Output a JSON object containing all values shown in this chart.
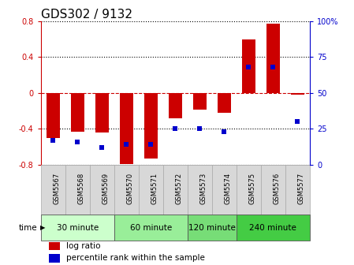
{
  "title": "GDS302 / 9132",
  "samples": [
    "GSM5567",
    "GSM5568",
    "GSM5569",
    "GSM5570",
    "GSM5571",
    "GSM5572",
    "GSM5573",
    "GSM5574",
    "GSM5575",
    "GSM5576",
    "GSM5577"
  ],
  "log_ratio": [
    -0.5,
    -0.43,
    -0.44,
    -0.79,
    -0.73,
    -0.28,
    -0.19,
    -0.22,
    0.6,
    0.77,
    -0.02
  ],
  "percentile": [
    17,
    16,
    12,
    14,
    14,
    25,
    25,
    23,
    68,
    68,
    30
  ],
  "ylim": [
    -0.8,
    0.8
  ],
  "yticks": [
    -0.8,
    -0.4,
    0.0,
    0.4,
    0.8
  ],
  "y2ticks": [
    0,
    25,
    50,
    75,
    100
  ],
  "y2labels": [
    "0",
    "25",
    "50",
    "75",
    "100%"
  ],
  "bar_color": "#cc0000",
  "dot_color": "#0000cc",
  "hline_color": "#cc0000",
  "grid_color": "#000000",
  "bg_color": "#ffffff",
  "plot_bg": "#ffffff",
  "groups": [
    {
      "label": "30 minute",
      "start": 0,
      "end": 3,
      "color": "#ccffcc"
    },
    {
      "label": "60 minute",
      "start": 3,
      "end": 6,
      "color": "#99ee99"
    },
    {
      "label": "120 minute",
      "start": 6,
      "end": 8,
      "color": "#77dd77"
    },
    {
      "label": "240 minute",
      "start": 8,
      "end": 11,
      "color": "#44cc44"
    }
  ],
  "bar_width": 0.55,
  "legend_log_ratio": "log ratio",
  "legend_percentile": "percentile rank within the sample",
  "title_fontsize": 11,
  "tick_fontsize": 7,
  "sample_fontsize": 6,
  "group_fontsize": 7.5,
  "legend_fontsize": 7.5,
  "time_label": "time"
}
